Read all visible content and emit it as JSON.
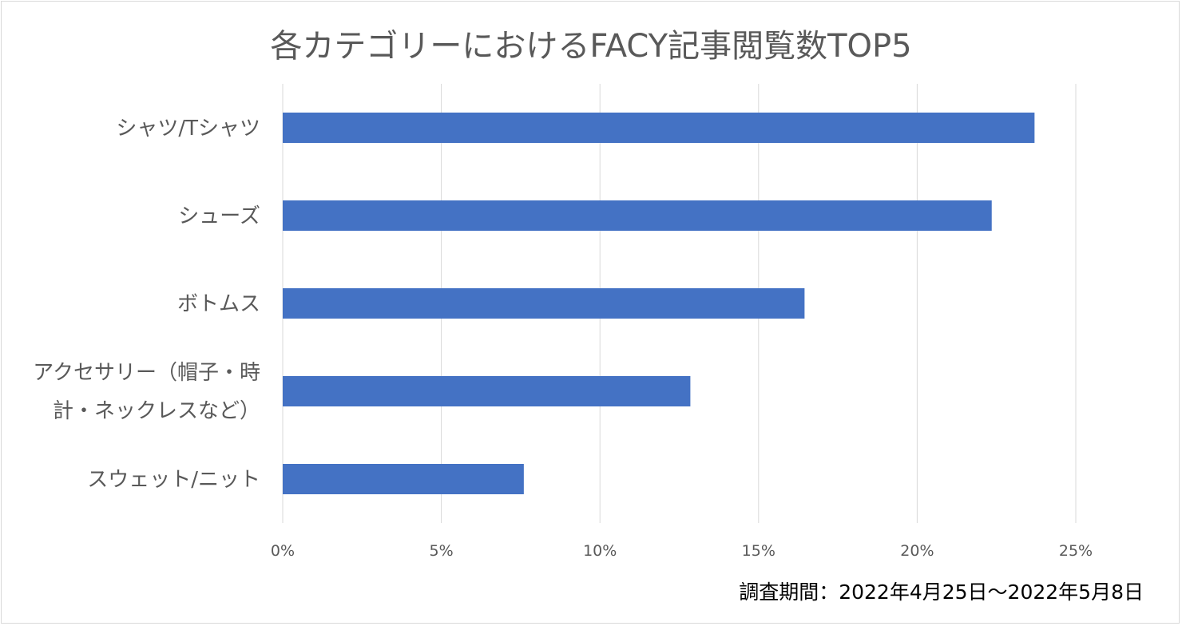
{
  "chart_data": {
    "type": "bar",
    "orientation": "horizontal",
    "title": "各カテゴリーにおけるFACY記事閲覧数TOP5",
    "categories": [
      "シャツ/Tシャツ",
      "シューズ",
      "ボトムス",
      "アクセサリー（帽子・時計・ネックレスなど）",
      "スウェット/ニット"
    ],
    "category_lines": [
      [
        "シャツ/Tシャツ"
      ],
      [
        "シューズ"
      ],
      [
        "ボトムス"
      ],
      [
        "アクセサリー（帽子・時",
        "計・ネックレスなど）"
      ],
      [
        "スウェット/ニット"
      ]
    ],
    "values": [
      23.7,
      22.35,
      16.45,
      12.85,
      7.6
    ],
    "xlim": [
      0,
      25
    ],
    "xticks": [
      "0%",
      "5%",
      "10%",
      "15%",
      "20%",
      "25%"
    ],
    "xtick_values": [
      0,
      5,
      10,
      15,
      20,
      25
    ],
    "grid": true,
    "legend": "none",
    "bar_color": "#4472c4",
    "grid_color": "#d9d9d9",
    "label_color": "#595959",
    "xlabel": "",
    "ylabel": ""
  },
  "footnote": "調査期間：2022年4月25日〜2022年5月8日"
}
